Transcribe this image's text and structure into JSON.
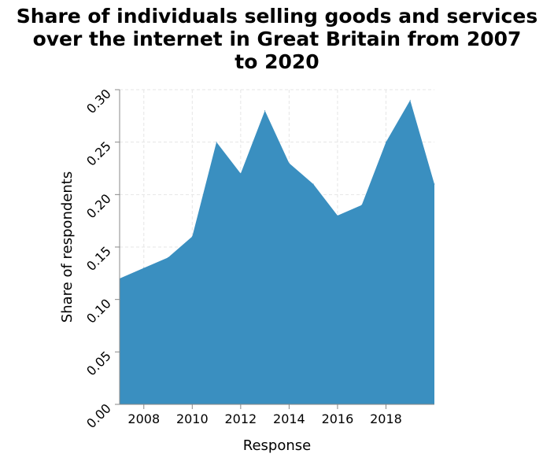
{
  "title_lines": [
    "Share of individuals selling goods and services",
    "over the internet in Great Britain from 2007",
    "to 2020"
  ],
  "chart_data": {
    "type": "area",
    "title": "Share of individuals selling goods and services over the internet in Great Britain from 2007 to 2020",
    "xlabel": "Response",
    "ylabel": "Share of respondents",
    "x": [
      2007,
      2008,
      2009,
      2010,
      2011,
      2012,
      2013,
      2014,
      2015,
      2016,
      2017,
      2018,
      2019,
      2020
    ],
    "series": [
      {
        "values": [
          0.12,
          0.13,
          0.14,
          0.16,
          0.25,
          0.22,
          0.28,
          0.23,
          0.21,
          0.18,
          0.19,
          0.25,
          0.29,
          0.21
        ]
      }
    ],
    "xlim": [
      2007,
      2020
    ],
    "ylim": [
      0,
      0.3
    ],
    "x_ticks": [
      2008,
      2010,
      2012,
      2014,
      2016,
      2018
    ],
    "x_tick_labels": [
      "2008",
      "2010",
      "2012",
      "2014",
      "2016",
      "2018"
    ],
    "y_ticks": [
      0,
      0.05,
      0.1,
      0.15,
      0.2,
      0.25,
      0.3
    ],
    "y_tick_labels": [
      "0.00",
      "0.05",
      "0.10",
      "0.15",
      "0.20",
      "0.25",
      "0.30"
    ],
    "grid": true,
    "fill_color": "#3a8fc0"
  }
}
